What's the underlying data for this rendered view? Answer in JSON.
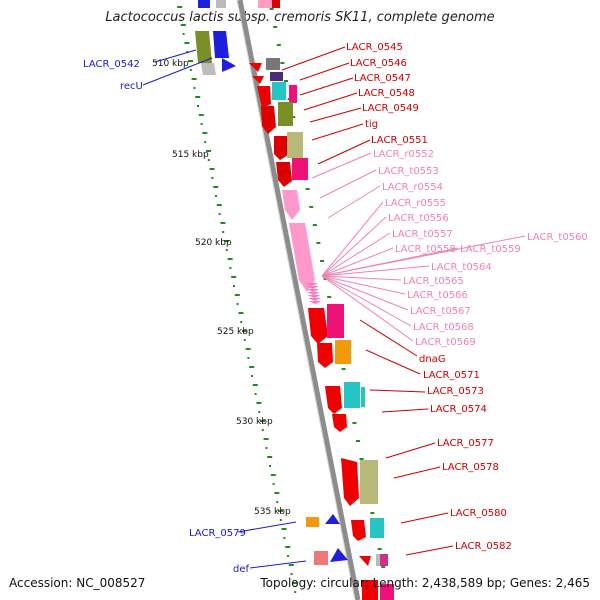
{
  "title": "Lactococcus lactis subsp. cremoris SK11, complete genome",
  "footer": {
    "accession": "Accession: NC_008527",
    "topology": "Topology: circular; Length: 2,438,589 bp; Genes: 2,465"
  },
  "scale_ticks": [
    "510 kbp",
    "515 kbp",
    "520 kbp",
    "525 kbp",
    "530 kbp",
    "535 kbp"
  ],
  "left_labels": [
    "LACR_0542",
    "recU",
    "LACR_0579",
    "def"
  ],
  "right_labels_red": [
    "LACR_0545",
    "LACR_0546",
    "LACR_0547",
    "LACR_0548",
    "LACR_0549",
    "tig",
    "LACR_0551"
  ],
  "right_labels_pink": [
    "LACR_r0552",
    "LACR_t0553",
    "LACR_r0554",
    "LACR_r0555",
    "LACR_t0556",
    "LACR_t0557",
    "LACR_t0558",
    "LACR_t0559",
    "LACR_t0560",
    "LACR_t0564",
    "LACR_t0565",
    "LACR_t0566",
    "LACR_t0567",
    "LACR_t0568",
    "LACR_t0569"
  ],
  "right_labels_red2": [
    "dnaG",
    "LACR_0571",
    "LACR_0573",
    "LACR_0574",
    "LACR_0577",
    "LACR_0578",
    "LACR_0580",
    "LACR_0582"
  ],
  "colors": {
    "label_red": "#cc0000",
    "label_pink": "#ee82b4",
    "label_blue": "#1a1acc",
    "backbone": "#8c8c8c",
    "tick_green": "#228b22"
  }
}
